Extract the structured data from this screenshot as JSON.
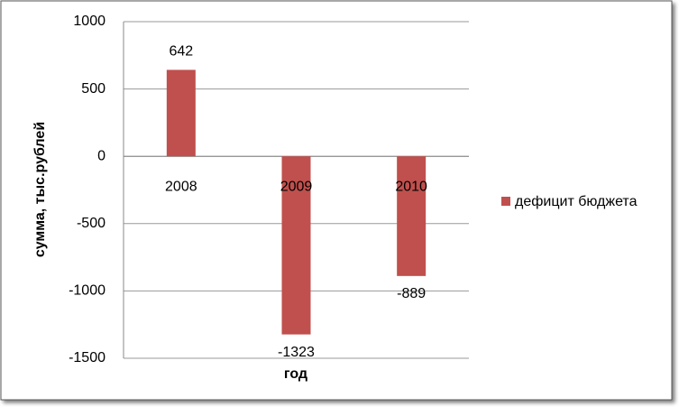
{
  "chart_data": {
    "type": "bar",
    "categories": [
      "2008",
      "2009",
      "2010"
    ],
    "series": [
      {
        "name": "дефицит бюджета",
        "color": "#c0504d",
        "values": [
          642,
          -1323,
          -889
        ]
      }
    ],
    "ylim": [
      -1500,
      1000
    ],
    "yticks": [
      -1500,
      -1000,
      -500,
      0,
      500,
      1000
    ],
    "y_label": "сумма, тыс.рублей",
    "x_label": "год",
    "grid": true,
    "legend": "right"
  }
}
